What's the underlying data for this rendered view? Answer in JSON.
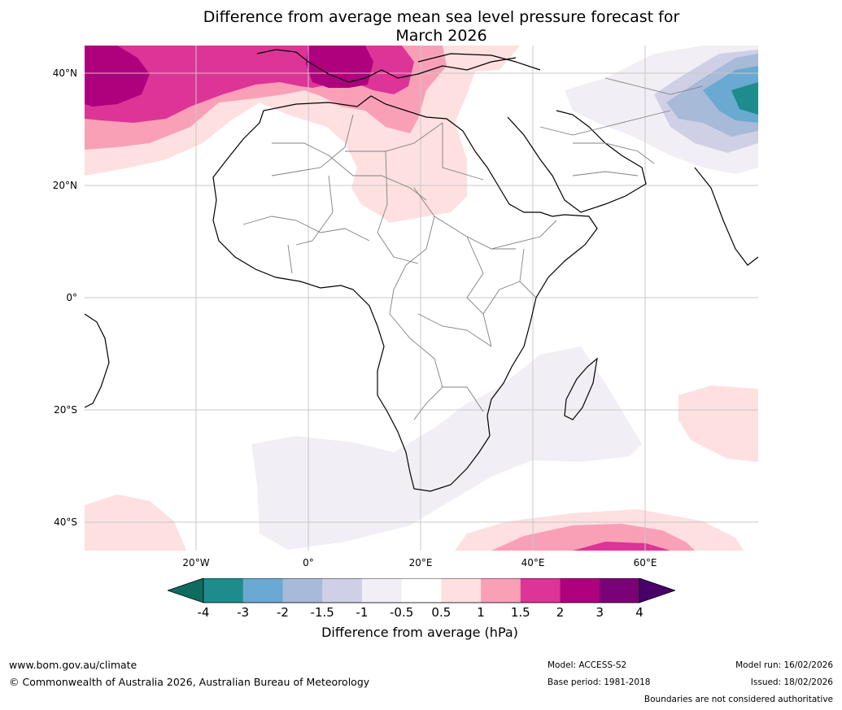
{
  "title": {
    "line1": "Difference from average mean sea level pressure forecast for",
    "line2": "March 2026"
  },
  "map": {
    "lat_labels": [
      "40°N",
      "20°N",
      "0°",
      "20°S",
      "40°S"
    ],
    "lon_labels": [
      "20°W",
      "0°",
      "20°E",
      "40°E",
      "60°E"
    ]
  },
  "colorbar": {
    "label": "Difference from average (hPa)",
    "ticks": [
      "-4",
      "-3",
      "-2",
      "-1.5",
      "-1",
      "-0.5",
      "0.5",
      "1",
      "1.5",
      "2",
      "3",
      "4"
    ],
    "bins": [
      {
        "range": "-4 to -3",
        "color": "#1e8c8c"
      },
      {
        "range": "-3 to -2",
        "color": "#6aa9d1"
      },
      {
        "range": "-2 to -1.5",
        "color": "#a7bad8"
      },
      {
        "range": "-1.5 to -1",
        "color": "#cfd0e6"
      },
      {
        "range": "-1 to -0.5",
        "color": "#f1eef5"
      },
      {
        "range": "-0.5 to 0.5",
        "color": "#ffffff"
      },
      {
        "range": "0.5 to 1",
        "color": "#fde0df"
      },
      {
        "range": "1 to 1.5",
        "color": "#f9a0b7"
      },
      {
        "range": "1.5 to 2",
        "color": "#dd3497"
      },
      {
        "range": "2 to 3",
        "color": "#ae017e"
      },
      {
        "range": "3 to 4",
        "color": "#7a0177"
      }
    ],
    "under_color": "#0e6b5e",
    "over_color": "#49006a"
  },
  "footer": {
    "website": "www.bom.gov.au/climate",
    "copyright": "© Commonwealth of Australia 2026, Australian Bureau of Meteorology",
    "model": "Model: ACCESS-S2",
    "base_period": "Base period: 1981-2018",
    "model_run": "Model run: 16/02/2026",
    "issued": "Issued: 18/02/2026",
    "disclaimer": "Boundaries are not considered authoritative"
  }
}
